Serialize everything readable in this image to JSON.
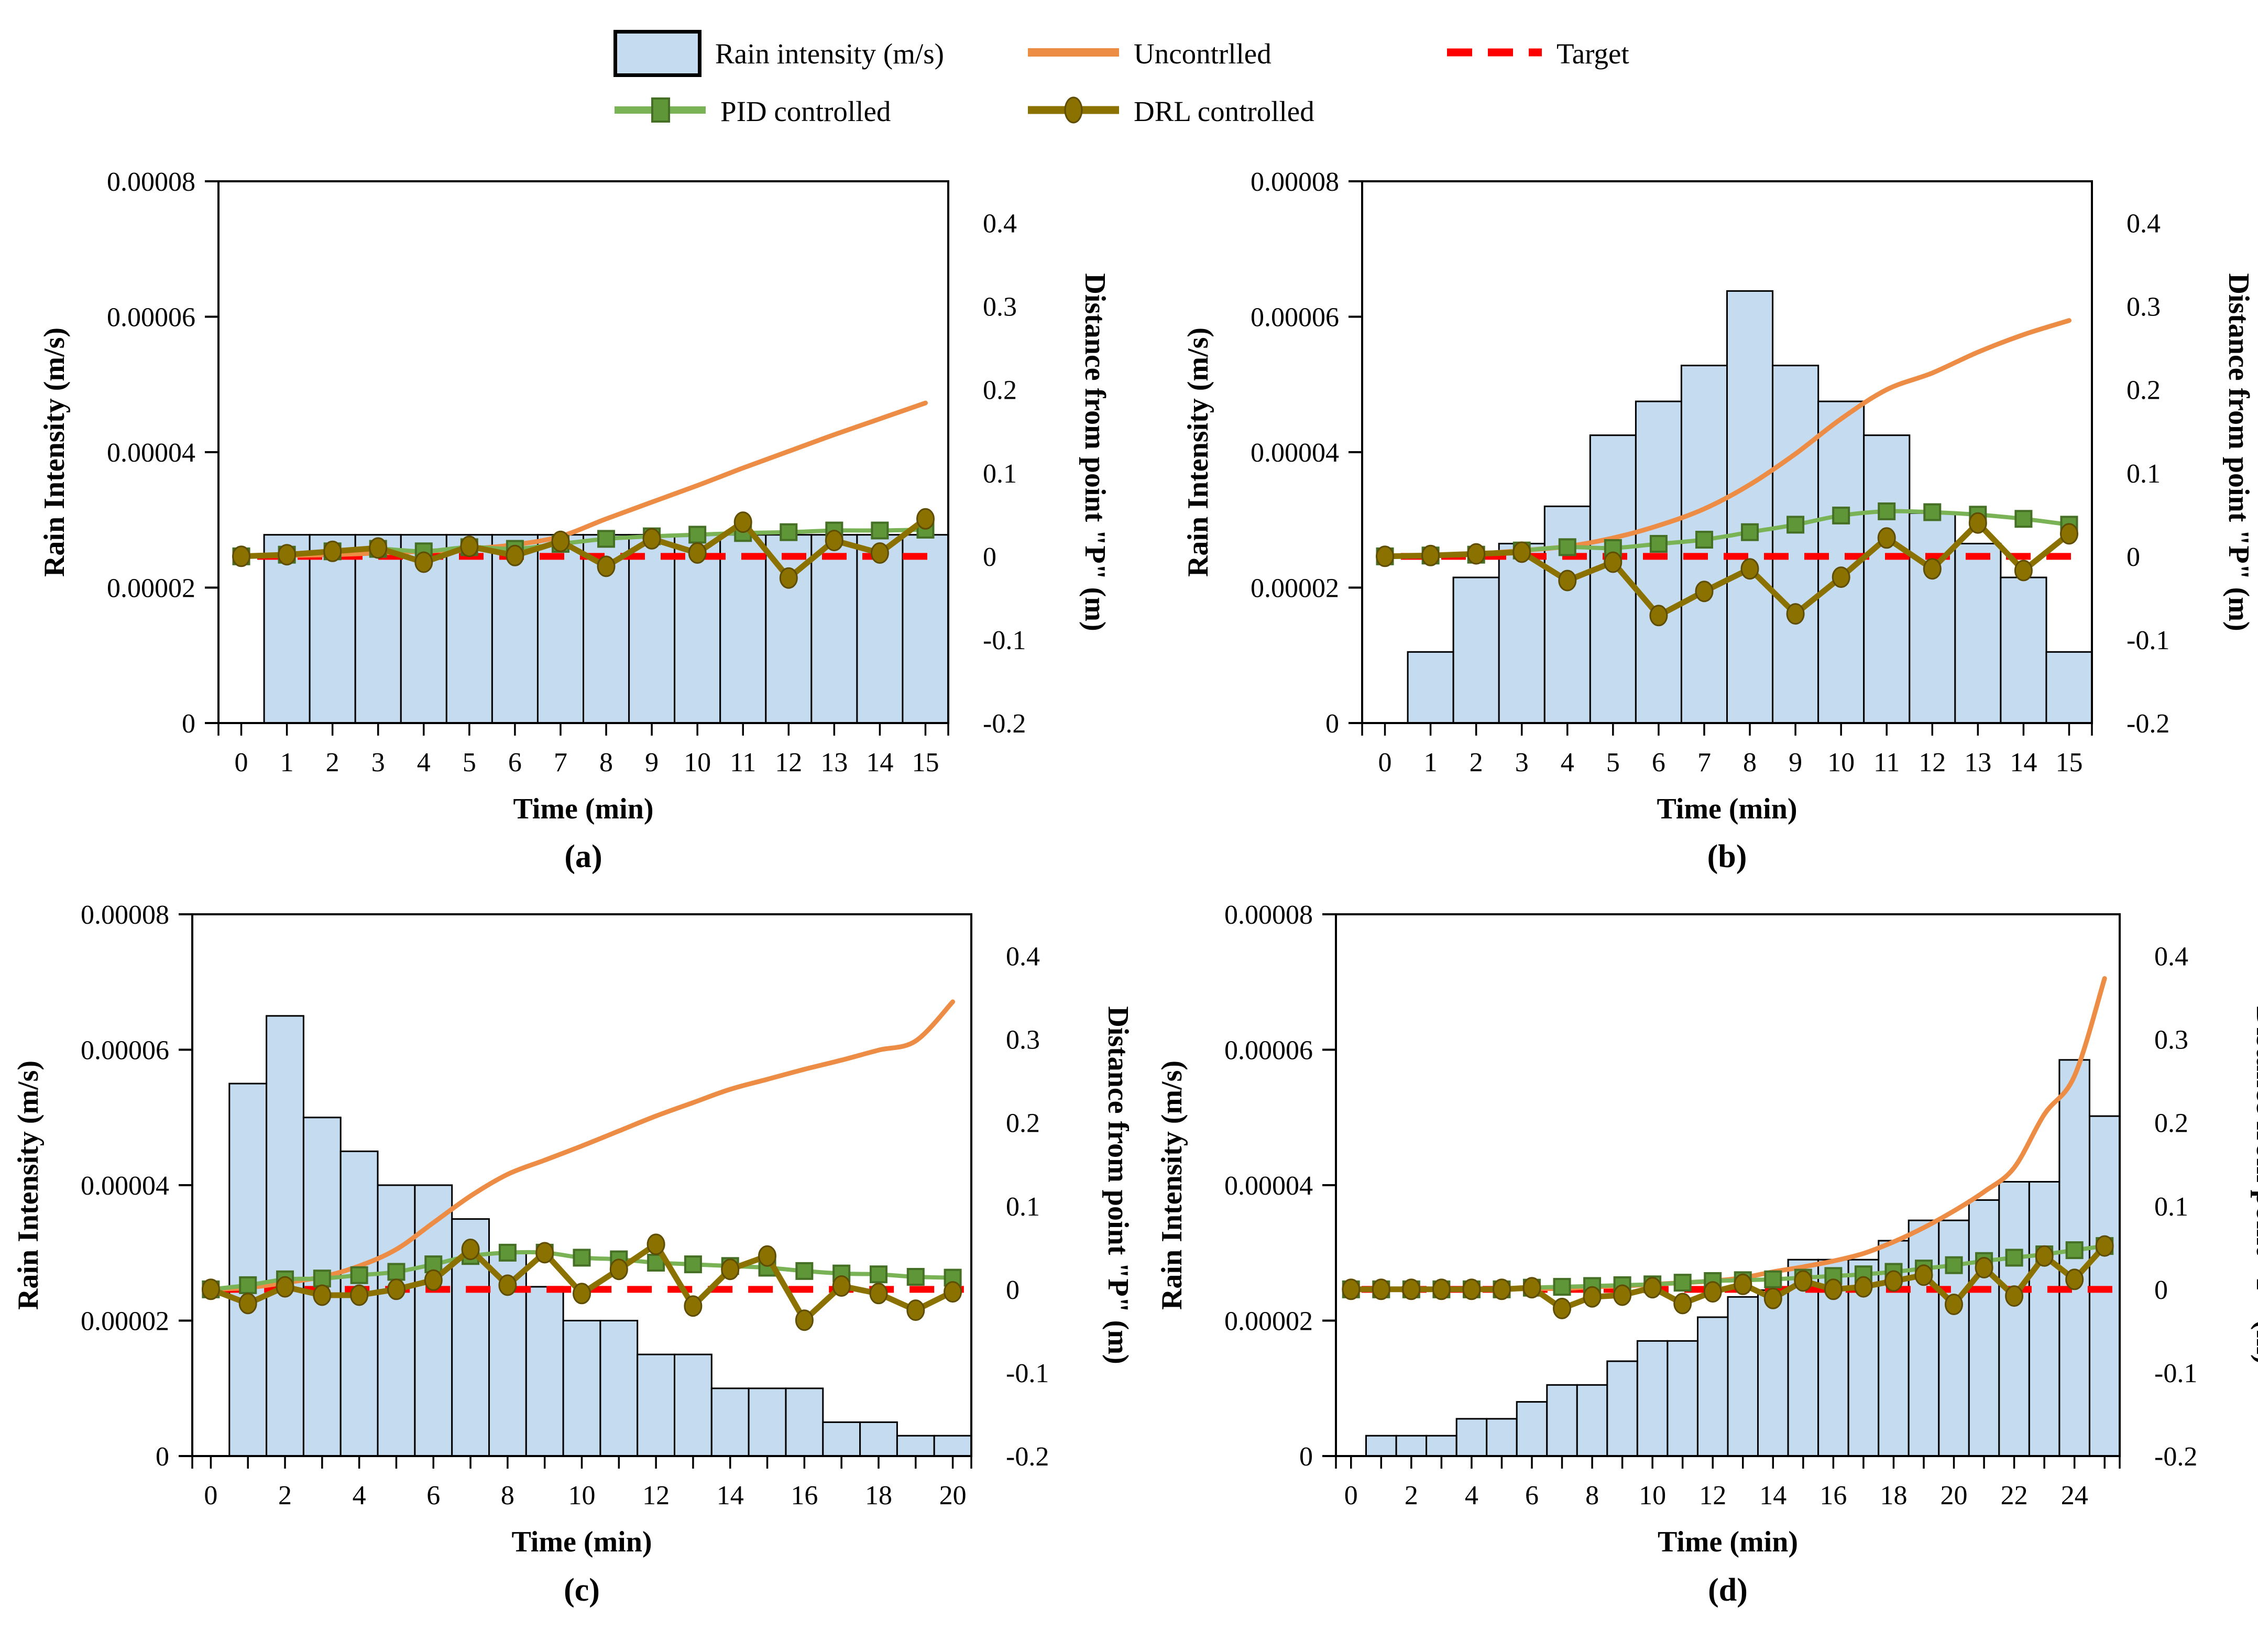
{
  "legend": {
    "items": [
      {
        "label": "Rain intensity (m/s)",
        "icon": "bar-swatch-icon"
      },
      {
        "label": "Uncontrlled",
        "icon": "orange-line-icon"
      },
      {
        "label": "Target",
        "icon": "red-dashed-line-icon"
      },
      {
        "label": "PID controlled",
        "icon": "green-square-line-icon"
      },
      {
        "label": "DRL controlled",
        "icon": "olive-circle-line-icon"
      }
    ]
  },
  "axes": {
    "x_label": "Time (min)",
    "left_label": "Rain Intensity (m/s)",
    "right_label": "Distance from point \"P\" (m)",
    "left_range": [
      0,
      8e-05
    ],
    "right_range": [
      -0.2,
      0.45
    ],
    "left_ticks": [
      {
        "v": 0,
        "label": "0"
      },
      {
        "v": 2e-05,
        "label": "0.00002"
      },
      {
        "v": 4e-05,
        "label": "0.00004"
      },
      {
        "v": 6e-05,
        "label": "0.00006"
      },
      {
        "v": 8e-05,
        "label": "0.00008"
      }
    ],
    "right_ticks": [
      {
        "v": 0.4,
        "label": "0.4"
      },
      {
        "v": 0.3,
        "label": "0.3"
      },
      {
        "v": 0.2,
        "label": "0.2"
      },
      {
        "v": 0.1,
        "label": "0.1"
      },
      {
        "v": 0,
        "label": "0"
      },
      {
        "v": -0.1,
        "label": "-0.1"
      },
      {
        "v": -0.2,
        "label": "-0.2"
      }
    ],
    "grid": "off",
    "legend_position": "top"
  },
  "colors": {
    "bar_fill": "#C5DCF0",
    "bar_border": "#000000",
    "uncontrolled": "#ED8C44",
    "pid_line": "#79B355",
    "pid_marker": "#5F9637",
    "pid_marker_border": "#466F26",
    "drl": "#8A7100",
    "drl_border": "#5E4D00",
    "target": "#FF0000",
    "axis": "#000000"
  },
  "chart_data": [
    {
      "id": "a",
      "caption": "(a)",
      "type": "bar+line",
      "x_max": 15,
      "x_label_every": 1,
      "bar_values": [
        2.78e-05,
        2.78e-05,
        2.78e-05,
        2.78e-05,
        2.78e-05,
        2.78e-05,
        2.78e-05,
        2.78e-05,
        2.78e-05,
        2.78e-05,
        2.78e-05,
        2.78e-05,
        2.78e-05,
        2.78e-05,
        2.78e-05
      ],
      "uncontrolled": [
        0,
        0.001,
        0.002,
        0.004,
        0.006,
        0.009,
        0.014,
        0.024,
        0.045,
        0.065,
        0.085,
        0.106,
        0.126,
        0.146,
        0.165,
        0.184
      ],
      "pid": [
        0,
        0.002,
        0.006,
        0.009,
        0.006,
        0.011,
        0.009,
        0.015,
        0.021,
        0.024,
        0.026,
        0.028,
        0.029,
        0.031,
        0.031,
        0.032
      ],
      "drl": [
        0,
        0.002,
        0.006,
        0.01,
        -0.007,
        0.012,
        0.001,
        0.018,
        -0.012,
        0.021,
        0.004,
        0.041,
        -0.026,
        0.019,
        0.004,
        0.045
      ],
      "target": 0
    },
    {
      "id": "b",
      "caption": "(b)",
      "type": "bar+line",
      "x_max": 15,
      "x_label_every": 1,
      "bar_values": [
        1.05e-05,
        2.15e-05,
        2.65e-05,
        3.2e-05,
        4.25e-05,
        4.75e-05,
        5.28e-05,
        6.38e-05,
        5.28e-05,
        4.75e-05,
        4.25e-05,
        3.1e-05,
        2.65e-05,
        2.15e-05,
        1.05e-05
      ],
      "uncontrolled": [
        0,
        0.001,
        0.003,
        0.007,
        0.012,
        0.022,
        0.037,
        0.057,
        0.086,
        0.123,
        0.165,
        0.2,
        0.22,
        0.245,
        0.266,
        0.283
      ],
      "pid": [
        0,
        0.001,
        0.002,
        0.007,
        0.011,
        0.01,
        0.015,
        0.02,
        0.029,
        0.038,
        0.049,
        0.054,
        0.053,
        0.05,
        0.045,
        0.038
      ],
      "drl": [
        0,
        0.001,
        0.003,
        0.005,
        -0.029,
        -0.007,
        -0.071,
        -0.042,
        -0.015,
        -0.069,
        -0.025,
        0.022,
        -0.015,
        0.04,
        -0.017,
        0.027
      ],
      "target": 0
    },
    {
      "id": "c",
      "caption": "(c)",
      "type": "bar+line",
      "x_max": 20,
      "x_label_every": 2,
      "bar_values": [
        5.5e-05,
        6.5e-05,
        5e-05,
        4.5e-05,
        4e-05,
        4e-05,
        3.5e-05,
        3e-05,
        2.5e-05,
        2e-05,
        2e-05,
        1.5e-05,
        1.5e-05,
        1e-05,
        1e-05,
        1e-05,
        5e-06,
        5e-06,
        3e-06,
        3e-06
      ],
      "uncontrolled": [
        0,
        0.002,
        0.008,
        0.015,
        0.028,
        0.048,
        0.08,
        0.112,
        0.138,
        0.155,
        0.172,
        0.19,
        0.208,
        0.224,
        0.24,
        0.252,
        0.264,
        0.275,
        0.287,
        0.298,
        0.345
      ],
      "pid": [
        0,
        0.005,
        0.012,
        0.013,
        0.017,
        0.021,
        0.03,
        0.04,
        0.044,
        0.044,
        0.038,
        0.036,
        0.032,
        0.03,
        0.028,
        0.026,
        0.022,
        0.019,
        0.018,
        0.015,
        0.014
      ],
      "drl": [
        0,
        -0.017,
        0.003,
        -0.007,
        -0.007,
        0,
        0.011,
        0.048,
        0.005,
        0.044,
        -0.005,
        0.024,
        0.054,
        -0.02,
        0.024,
        0.04,
        -0.037,
        0.004,
        -0.005,
        -0.025,
        -0.003
      ],
      "target": 0
    },
    {
      "id": "d",
      "caption": "(d)",
      "type": "bar+line",
      "x_max": 25,
      "x_label_every": 2,
      "bar_values": [
        3e-06,
        3e-06,
        3e-06,
        5.5e-06,
        5.5e-06,
        8e-06,
        1.05e-05,
        1.05e-05,
        1.4e-05,
        1.7e-05,
        1.7e-05,
        2.05e-05,
        2.35e-05,
        2.45e-05,
        2.9e-05,
        2.9e-05,
        2.9e-05,
        3.18e-05,
        3.48e-05,
        3.48e-05,
        3.78e-05,
        4.05e-05,
        4.05e-05,
        5.85e-05,
        5.02e-05
      ],
      "uncontrolled": [
        0,
        0,
        0,
        0,
        0,
        0,
        0.001,
        0.001,
        0.003,
        0.004,
        0.006,
        0.008,
        0.01,
        0.014,
        0.021,
        0.027,
        0.034,
        0.043,
        0.057,
        0.074,
        0.094,
        0.117,
        0.146,
        0.21,
        0.256,
        0.373
      ],
      "pid": [
        0,
        0,
        0,
        0,
        0,
        0,
        0.002,
        0.003,
        0.004,
        0.005,
        0.006,
        0.008,
        0.01,
        0.011,
        0.012,
        0.014,
        0.016,
        0.018,
        0.021,
        0.025,
        0.029,
        0.034,
        0.038,
        0.042,
        0.047,
        0.052
      ],
      "drl": [
        0,
        0,
        0,
        0,
        0,
        0,
        0.002,
        -0.023,
        -0.009,
        -0.007,
        0.002,
        -0.017,
        -0.003,
        0.006,
        -0.011,
        0.01,
        0,
        0.003,
        0.01,
        0.017,
        -0.018,
        0.026,
        -0.008,
        0.04,
        0.012,
        0.052
      ],
      "target": 0
    }
  ]
}
